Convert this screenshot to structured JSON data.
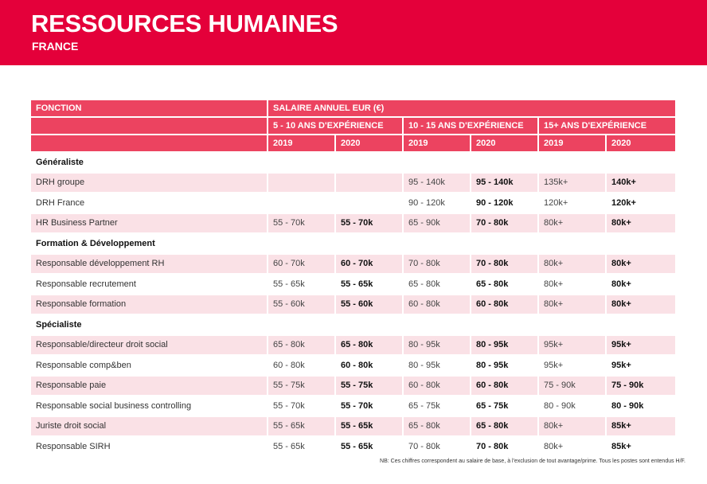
{
  "header": {
    "title": "RESSOURCES HUMAINES",
    "subtitle": "FRANCE"
  },
  "brand_color": "#e4003a",
  "table": {
    "col_function": "FONCTION",
    "col_salary": "SALAIRE ANNUEL EUR (€)",
    "experience_groups": [
      "5 - 10 ANS D'EXPÉRIENCE",
      "10 - 15 ANS D'EXPÉRIENCE",
      "15+ ANS D'EXPÉRIENCE"
    ],
    "years": [
      "2019",
      "2020",
      "2019",
      "2020",
      "2019",
      "2020"
    ],
    "sections": [
      {
        "name": "Généraliste",
        "rows": [
          {
            "fonction": "DRH groupe",
            "v": [
              "",
              "",
              "95 - 140k",
              "95 - 140k",
              "135k+",
              "140k+"
            ]
          },
          {
            "fonction": "DRH France",
            "v": [
              "",
              "",
              "90 - 120k",
              "90 - 120k",
              "120k+",
              "120k+"
            ]
          },
          {
            "fonction": "HR Business Partner",
            "v": [
              "55 - 70k",
              "55 - 70k",
              "65 - 90k",
              "70 - 80k",
              "80k+",
              "80k+"
            ]
          }
        ]
      },
      {
        "name": "Formation & Développement",
        "rows": [
          {
            "fonction": "Responsable développement RH",
            "v": [
              "60 - 70k",
              "60 - 70k",
              "70 - 80k",
              "70 - 80k",
              "80k+",
              "80k+"
            ]
          },
          {
            "fonction": "Responsable recrutement",
            "v": [
              "55 - 65k",
              "55 - 65k",
              "65 - 80k",
              "65 - 80k",
              "80k+",
              "80k+"
            ]
          },
          {
            "fonction": "Responsable formation",
            "v": [
              "55 - 60k",
              "55 - 60k",
              "60 - 80k",
              "60 - 80k",
              "80k+",
              "80k+"
            ]
          }
        ]
      },
      {
        "name": "Spécialiste",
        "rows": [
          {
            "fonction": "Responsable/directeur droit social",
            "v": [
              "65 - 80k",
              "65 - 80k",
              "80 - 95k",
              "80 - 95k",
              "95k+",
              "95k+"
            ]
          },
          {
            "fonction": "Responsable comp&ben",
            "v": [
              "60 - 80k",
              "60 - 80k",
              "80 - 95k",
              "80 - 95k",
              "95k+",
              "95k+"
            ]
          },
          {
            "fonction": "Responsable paie",
            "v": [
              "55 - 75k",
              "55 - 75k",
              "60 - 80k",
              "60 - 80k",
              "75 - 90k",
              "75 - 90k"
            ]
          },
          {
            "fonction": "Responsable social business controlling",
            "v": [
              "55 - 70k",
              "55 - 70k",
              "65 - 75k",
              "65 - 75k",
              "80 - 90k",
              "80 - 90k"
            ]
          },
          {
            "fonction": "Juriste droit social",
            "v": [
              "55 - 65k",
              "55 - 65k",
              "65 - 80k",
              "65 - 80k",
              "80k+",
              "85k+"
            ]
          },
          {
            "fonction": "Responsable SIRH",
            "v": [
              "55 - 65k",
              "55 - 65k",
              "70 - 80k",
              "70 - 80k",
              "80k+",
              "85k+"
            ]
          }
        ]
      }
    ]
  },
  "footnote": "NB: Ces chiffres correspondent au salaire de base, à l'exclusion de tout avantage/prime. Tous les postes sont entendus H/F."
}
